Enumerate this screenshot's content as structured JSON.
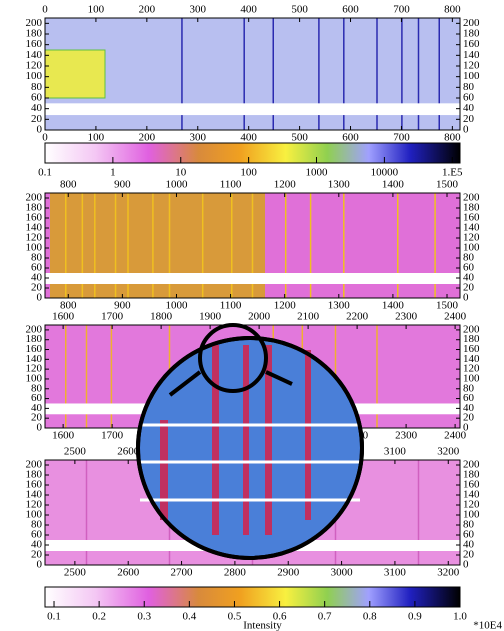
{
  "chart_data": {
    "type": "detector-strips",
    "panels": [
      {
        "xlim": [
          0,
          815
        ],
        "xticks": [
          0,
          100,
          200,
          300,
          400,
          500,
          600,
          700,
          800
        ],
        "ylim": [
          0,
          210
        ],
        "yticks": [
          0,
          20,
          40,
          60,
          80,
          100,
          120,
          140,
          160,
          180,
          200
        ]
      },
      {
        "xlim": [
          757,
          1524
        ],
        "xticks": [
          800,
          900,
          1000,
          1100,
          1200,
          1300,
          1400,
          1500
        ],
        "ylim": [
          0,
          210
        ],
        "yticks": [
          0,
          20,
          40,
          60,
          80,
          100,
          120,
          140,
          160,
          180,
          200
        ]
      },
      {
        "xlim": [
          1563,
          2410
        ],
        "xticks": [
          1600,
          1700,
          1800,
          1900,
          2000,
          2100,
          2200,
          2300,
          2400
        ],
        "ylim": [
          0,
          210
        ],
        "yticks": [
          0,
          20,
          40,
          60,
          80,
          100,
          120,
          140,
          160,
          180,
          200
        ]
      },
      {
        "xlim": [
          2444,
          3222
        ],
        "xticks": [
          2500,
          2600,
          2700,
          2800,
          2900,
          3000,
          3100,
          3200
        ],
        "ylim": [
          0,
          210
        ],
        "yticks": [
          0,
          20,
          40,
          60,
          80,
          100,
          120,
          140,
          160,
          180,
          200
        ]
      }
    ],
    "colorbars": [
      {
        "scale": "log",
        "xlim": [
          0.1,
          130000
        ],
        "xticks": [
          0.1,
          1,
          10,
          100,
          1000,
          10000,
          {
            "value": 100000,
            "label": "1.E5"
          }
        ]
      },
      {
        "scale": "linear",
        "xlim": [
          0.08,
          1.0
        ],
        "xticks": [
          0.1,
          0.2,
          0.3,
          0.4,
          0.5,
          0.6,
          0.7,
          0.8,
          0.9,
          {
            "value": 1,
            "label": "1.0"
          }
        ],
        "label": "Intensity",
        "unit_note": "*10E4"
      }
    ]
  }
}
